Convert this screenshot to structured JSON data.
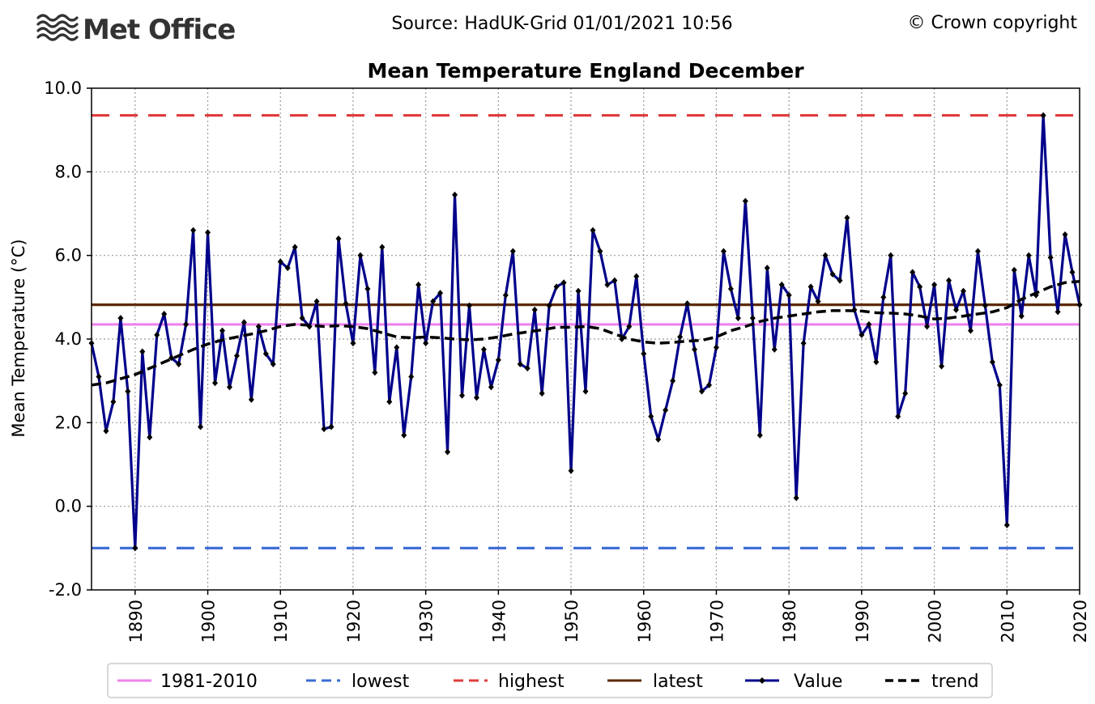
{
  "header": {
    "brand": "Met Office",
    "source": "Source: HadUK-Grid 01/01/2021 10:56",
    "copyright": "© Crown copyright"
  },
  "colors": {
    "baseline": "#ee82ee",
    "lowest": "#3a6bd4",
    "highest": "#e03c3c",
    "latest": "#5c2a00",
    "value": "#00008b",
    "trend": "#000000",
    "grid": "#999999"
  },
  "chart_data": {
    "type": "line",
    "title": "Mean Temperature England December",
    "xlabel": "",
    "ylabel": "Mean Temperature (°C)",
    "xlim": [
      1884,
      2020
    ],
    "ylim": [
      -2.0,
      10.0
    ],
    "y_ticks": [
      -2.0,
      0.0,
      2.0,
      4.0,
      6.0,
      8.0,
      10.0
    ],
    "y_tick_labels": [
      "-2.0",
      "0.0",
      "2.0",
      "4.0",
      "6.0",
      "8.0",
      "10.0"
    ],
    "x_ticks": [
      1890,
      1900,
      1910,
      1920,
      1930,
      1940,
      1950,
      1960,
      1970,
      1980,
      1990,
      2000,
      2010,
      2020
    ],
    "x_tick_labels": [
      "1890",
      "1900",
      "1910",
      "1920",
      "1930",
      "1940",
      "1950",
      "1960",
      "1970",
      "1980",
      "1990",
      "2000",
      "2010",
      "2020"
    ],
    "grid": true,
    "legend_position": "bottom",
    "reference_lines": [
      {
        "name": "1981-2010",
        "value": 4.35,
        "style": "solid"
      },
      {
        "name": "lowest",
        "value": -1.0,
        "style": "dashed"
      },
      {
        "name": "highest",
        "value": 9.35,
        "style": "dashed"
      },
      {
        "name": "latest",
        "value": 4.82,
        "style": "solid"
      }
    ],
    "series": [
      {
        "name": "Value",
        "x_start": 1884,
        "values": [
          3.9,
          3.1,
          1.8,
          2.5,
          4.5,
          2.75,
          -1.0,
          3.7,
          1.65,
          4.1,
          4.6,
          3.55,
          3.4,
          4.35,
          6.6,
          1.9,
          6.55,
          2.95,
          4.2,
          2.85,
          3.6,
          4.4,
          2.55,
          4.3,
          3.65,
          3.4,
          5.85,
          5.7,
          6.2,
          4.5,
          4.3,
          4.9,
          1.85,
          1.9,
          6.4,
          4.85,
          3.9,
          6.0,
          5.2,
          3.2,
          6.2,
          2.5,
          3.8,
          1.7,
          3.1,
          5.3,
          3.9,
          4.9,
          5.1,
          1.3,
          7.45,
          2.65,
          4.8,
          2.6,
          3.75,
          2.85,
          3.5,
          5.05,
          6.1,
          3.4,
          3.3,
          4.7,
          2.7,
          4.8,
          5.25,
          5.35,
          0.85,
          5.15,
          2.75,
          6.6,
          6.1,
          5.3,
          5.4,
          4.0,
          4.3,
          5.5,
          3.65,
          2.15,
          1.6,
          2.3,
          3.0,
          4.05,
          4.85,
          3.75,
          2.75,
          2.9,
          3.8,
          6.1,
          5.2,
          4.5,
          7.3,
          4.5,
          1.7,
          5.7,
          3.75,
          5.3,
          5.05,
          0.2,
          3.9,
          5.25,
          4.9,
          6.0,
          5.55,
          5.4,
          6.9,
          4.7,
          4.1,
          4.35,
          3.45,
          5.0,
          6.0,
          2.15,
          2.7,
          5.6,
          5.25,
          4.3,
          5.3,
          3.35,
          5.4,
          4.7,
          5.15,
          4.2,
          6.1,
          4.8,
          3.45,
          2.9,
          -0.45,
          5.65,
          4.55,
          6.0,
          5.05,
          9.35,
          5.95,
          4.65,
          6.5,
          5.6,
          4.82
        ]
      },
      {
        "name": "trend",
        "x": [
          1884,
          1886,
          1888,
          1890,
          1892,
          1894,
          1896,
          1898,
          1900,
          1902,
          1904,
          1906,
          1908,
          1910,
          1912,
          1914,
          1916,
          1918,
          1920,
          1922,
          1924,
          1926,
          1928,
          1930,
          1932,
          1934,
          1936,
          1938,
          1940,
          1942,
          1944,
          1946,
          1948,
          1950,
          1952,
          1954,
          1956,
          1958,
          1960,
          1962,
          1964,
          1966,
          1968,
          1970,
          1972,
          1974,
          1976,
          1978,
          1980,
          1982,
          1984,
          1986,
          1988,
          1990,
          1992,
          1994,
          1996,
          1998,
          2000,
          2002,
          2004,
          2006,
          2008,
          2010,
          2012,
          2014,
          2016,
          2018,
          2020
        ],
        "values": [
          2.9,
          2.95,
          3.05,
          3.15,
          3.3,
          3.45,
          3.6,
          3.75,
          3.88,
          3.98,
          4.05,
          4.12,
          4.2,
          4.3,
          4.35,
          4.33,
          4.3,
          4.32,
          4.3,
          4.25,
          4.15,
          4.05,
          4.03,
          4.05,
          4.03,
          4.0,
          3.98,
          4.0,
          4.05,
          4.12,
          4.17,
          4.22,
          4.28,
          4.28,
          4.3,
          4.25,
          4.12,
          4.0,
          3.93,
          3.9,
          3.92,
          3.95,
          3.97,
          4.05,
          4.2,
          4.3,
          4.42,
          4.5,
          4.55,
          4.6,
          4.65,
          4.68,
          4.68,
          4.67,
          4.63,
          4.62,
          4.6,
          4.55,
          4.48,
          4.5,
          4.55,
          4.6,
          4.65,
          4.75,
          4.95,
          5.1,
          5.25,
          5.35,
          5.38
        ]
      }
    ]
  }
}
